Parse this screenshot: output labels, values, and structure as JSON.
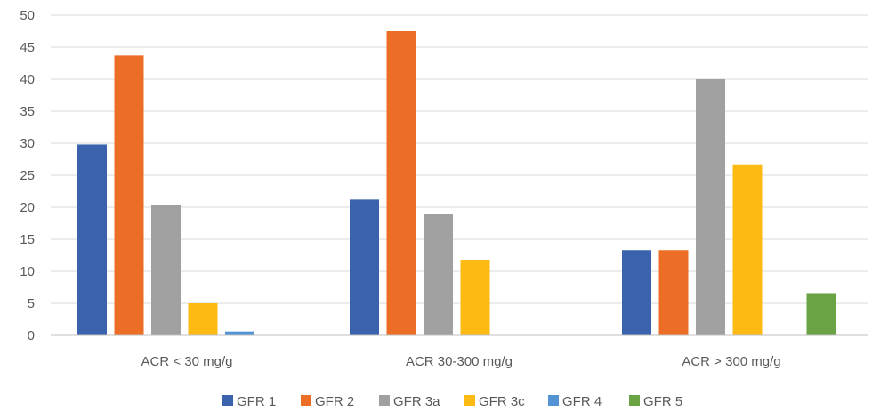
{
  "chart_data": {
    "type": "bar",
    "categories": [
      "ACR < 30 mg/g",
      "ACR 30-300 mg/g",
      "ACR > 300 mg/g"
    ],
    "series": [
      {
        "name": "GFR 1",
        "color": "#3A62AD",
        "values": [
          29.8,
          21.2,
          13.3
        ]
      },
      {
        "name": "GFR 2",
        "color": "#EC6D25",
        "values": [
          43.7,
          47.5,
          13.3
        ]
      },
      {
        "name": "GFR 3a",
        "color": "#A0A0A0",
        "values": [
          20.3,
          18.9,
          40.0
        ]
      },
      {
        "name": "GFR 3c",
        "color": "#FDBA13",
        "values": [
          5.0,
          11.8,
          26.7
        ]
      },
      {
        "name": "GFR 4",
        "color": "#5293D4",
        "values": [
          0.6,
          0,
          0
        ]
      },
      {
        "name": "GFR 5",
        "color": "#6AA343",
        "values": [
          0,
          0,
          6.6
        ]
      }
    ],
    "ylim": [
      0,
      50
    ],
    "yticks": [
      "0",
      "5",
      "10",
      "15",
      "20",
      "25",
      "30",
      "35",
      "40",
      "45",
      "50"
    ],
    "grid": true,
    "legend_position": "bottom",
    "gridline_color": "#D9D9D9"
  }
}
